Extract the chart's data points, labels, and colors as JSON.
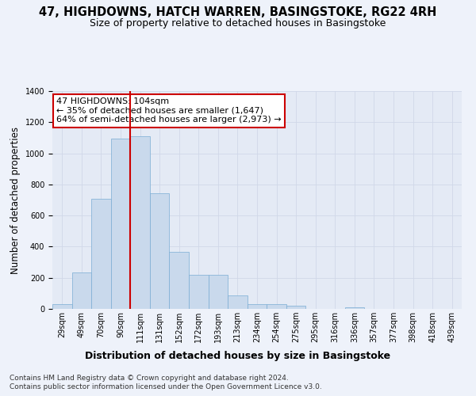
{
  "title": "47, HIGHDOWNS, HATCH WARREN, BASINGSTOKE, RG22 4RH",
  "subtitle": "Size of property relative to detached houses in Basingstoke",
  "xlabel": "Distribution of detached houses by size in Basingstoke",
  "ylabel": "Number of detached properties",
  "bin_labels": [
    "29sqm",
    "49sqm",
    "70sqm",
    "90sqm",
    "111sqm",
    "131sqm",
    "152sqm",
    "172sqm",
    "193sqm",
    "213sqm",
    "234sqm",
    "254sqm",
    "275sqm",
    "295sqm",
    "316sqm",
    "336sqm",
    "357sqm",
    "377sqm",
    "398sqm",
    "418sqm",
    "439sqm"
  ],
  "bar_heights": [
    30,
    235,
    710,
    1095,
    1110,
    745,
    365,
    220,
    220,
    85,
    30,
    30,
    20,
    0,
    0,
    10,
    0,
    0,
    0,
    0,
    0
  ],
  "bar_color": "#c9d9ec",
  "bar_edge_color": "#7aadd4",
  "vline_pos": 3.5,
  "annotation_text": "47 HIGHDOWNS: 104sqm\n← 35% of detached houses are smaller (1,647)\n64% of semi-detached houses are larger (2,973) →",
  "annotation_box_color": "#ffffff",
  "annotation_border_color": "#cc0000",
  "vline_color": "#cc0000",
  "ylim": [
    0,
    1400
  ],
  "yticks": [
    0,
    200,
    400,
    600,
    800,
    1000,
    1200,
    1400
  ],
  "grid_color": "#d0d8e8",
  "background_color": "#eef2fa",
  "plot_bg_color": "#e4eaf5",
  "footer_line1": "Contains HM Land Registry data © Crown copyright and database right 2024.",
  "footer_line2": "Contains public sector information licensed under the Open Government Licence v3.0.",
  "title_fontsize": 10.5,
  "subtitle_fontsize": 9,
  "xlabel_fontsize": 9,
  "ylabel_fontsize": 8.5,
  "tick_fontsize": 7,
  "annotation_fontsize": 8,
  "footer_fontsize": 6.5
}
